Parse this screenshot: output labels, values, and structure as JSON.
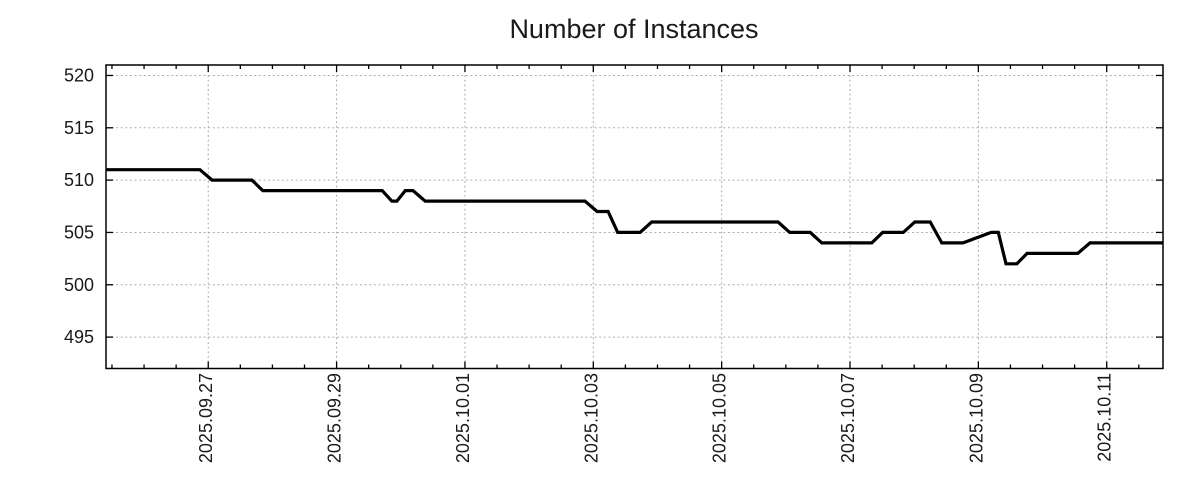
{
  "title": "Number of Instances",
  "colors": {
    "background": "#ffffff",
    "line": "#000000",
    "grid": "#adadad",
    "border": "#000000",
    "text": "#1a1a1a"
  },
  "chart_data": {
    "type": "line",
    "title": "Number of Instances",
    "xlabel": "",
    "ylabel": "",
    "grid": true,
    "legend": null,
    "y_ticks": [
      495,
      500,
      505,
      510,
      515,
      520
    ],
    "ylim": [
      492,
      521
    ],
    "x_unit": "days since 2025-09-27 00:00",
    "xlim_days": [
      -1.593,
      14.877
    ],
    "x_minor_interval_days": 0.5,
    "x_major_ticks": [
      {
        "day": 0,
        "label": "2025.09.27"
      },
      {
        "day": 2,
        "label": "2025.09.29"
      },
      {
        "day": 4,
        "label": "2025.10.01"
      },
      {
        "day": 6,
        "label": "2025.10.03"
      },
      {
        "day": 8,
        "label": "2025.10.05"
      },
      {
        "day": 10,
        "label": "2025.10.07"
      },
      {
        "day": 12,
        "label": "2025.10.09"
      },
      {
        "day": 14,
        "label": "2025.10.11"
      }
    ],
    "series": [
      {
        "name": "Number of Instances",
        "color": "#000000",
        "points": [
          [
            -1.59,
            511
          ],
          [
            -0.13,
            511
          ],
          [
            0.06,
            510
          ],
          [
            0.68,
            510
          ],
          [
            0.85,
            509
          ],
          [
            2.71,
            509
          ],
          [
            2.86,
            508
          ],
          [
            2.94,
            508
          ],
          [
            3.07,
            509
          ],
          [
            3.19,
            509
          ],
          [
            3.38,
            508
          ],
          [
            5.87,
            508
          ],
          [
            6.06,
            507
          ],
          [
            6.23,
            507
          ],
          [
            6.38,
            505
          ],
          [
            6.73,
            505
          ],
          [
            6.91,
            506
          ],
          [
            8.88,
            506
          ],
          [
            9.06,
            505
          ],
          [
            9.38,
            505
          ],
          [
            9.56,
            504
          ],
          [
            10.34,
            504
          ],
          [
            10.51,
            505
          ],
          [
            10.83,
            505
          ],
          [
            11.01,
            506
          ],
          [
            11.25,
            506
          ],
          [
            11.43,
            504
          ],
          [
            11.76,
            504
          ],
          [
            12.2,
            505
          ],
          [
            12.31,
            505
          ],
          [
            12.43,
            502
          ],
          [
            12.6,
            502
          ],
          [
            12.76,
            503
          ],
          [
            13.55,
            503
          ],
          [
            13.74,
            504
          ],
          [
            14.877,
            504
          ]
        ]
      }
    ]
  }
}
